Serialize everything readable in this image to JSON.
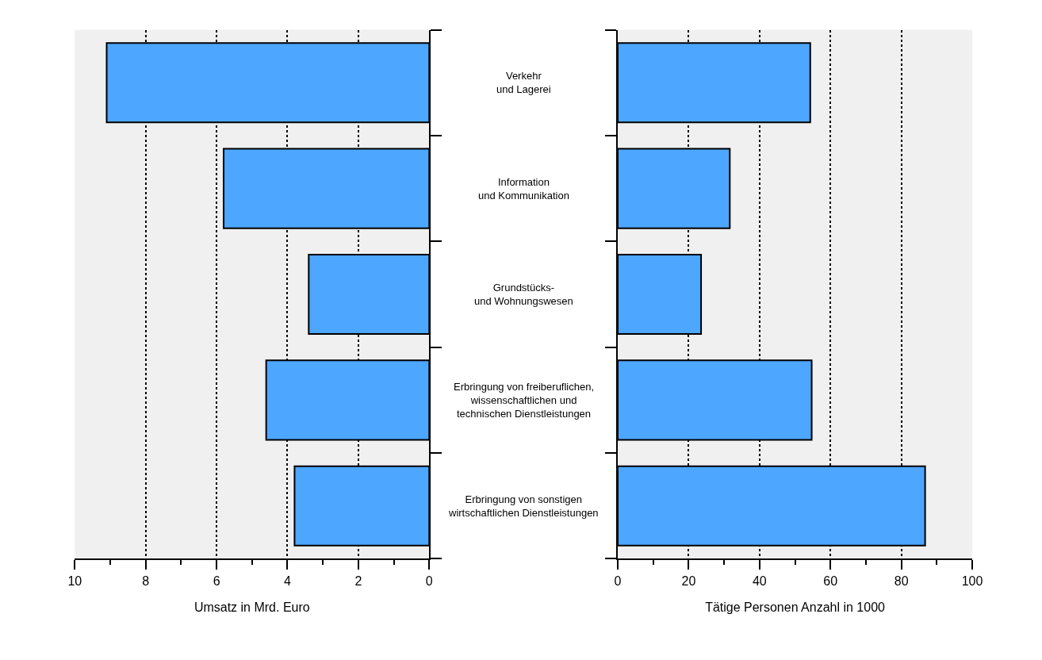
{
  "chart_data": [
    {
      "type": "bar",
      "orientation": "horizontal",
      "xlabel": "Umsatz in Mrd. Euro",
      "categories": [
        "Verkehr\nund Lagerei",
        "Information\nund Kommunikation",
        "Grundstücks-\nund Wohnungswesen",
        "Erbringung von freiberuflichen,\nwissenschaftlichen und\ntechnischen Dienstleistungen",
        "Erbringung von sonstigen\nwirtschaftlichen Dienstleistungen"
      ],
      "values": [
        9.1,
        5.8,
        3.4,
        4.6,
        3.8
      ],
      "color": "#4da6ff",
      "xlim": [
        10,
        0
      ],
      "xticks": [
        10,
        {
          "value": 9,
          "label": null
        },
        8,
        {
          "value": 7,
          "label": null
        },
        6,
        {
          "value": 5,
          "label": null
        },
        4,
        {
          "value": 3,
          "label": null
        },
        2,
        {
          "value": 1,
          "label": null
        },
        0
      ],
      "grid": "x"
    },
    {
      "type": "bar",
      "orientation": "horizontal",
      "xlabel": "Tätige Personen Anzahl in 1000",
      "categories": [
        null,
        null,
        null,
        null,
        null
      ],
      "values": [
        54.3,
        31.6,
        23.5,
        54.7,
        86.7
      ],
      "color": "#4da6ff",
      "xlim": [
        0,
        100
      ],
      "xticks": [
        0,
        {
          "value": 10,
          "label": null
        },
        20,
        {
          "value": 30,
          "label": null
        },
        40,
        {
          "value": 50,
          "label": null
        },
        60,
        {
          "value": 70,
          "label": null
        },
        80,
        {
          "value": 90,
          "label": null
        },
        100
      ],
      "grid": "x",
      "tick_labels": "x"
    }
  ]
}
